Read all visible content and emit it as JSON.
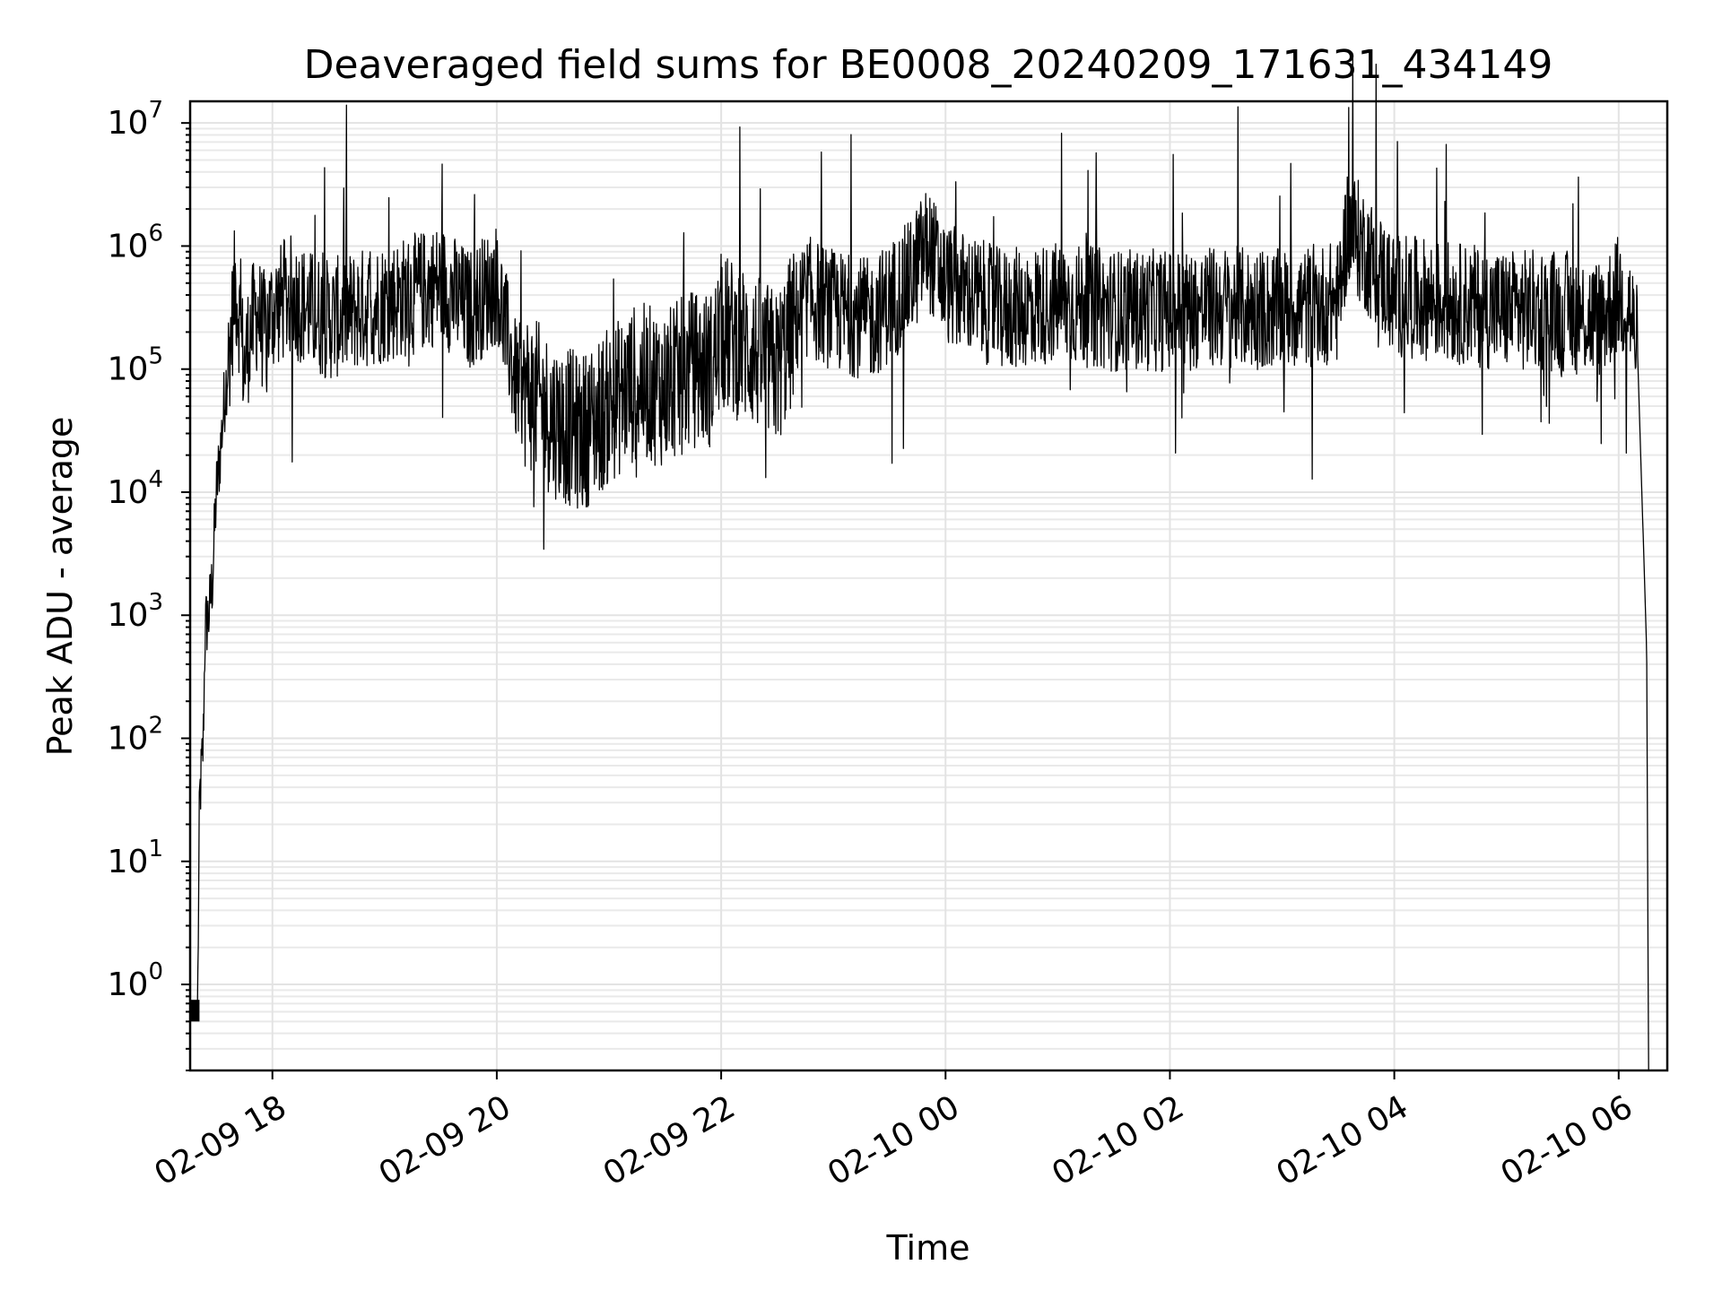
{
  "chart_data": {
    "type": "line",
    "title": "Deaveraged field sums for BE0008_20240209_171631_434149",
    "xlabel": "Time",
    "ylabel": "Peak ADU - average",
    "y_scale": "log",
    "ylim": [
      0.2,
      15000000
    ],
    "xlim": [
      "2024-02-09 17:16",
      "2024-02-10 06:26"
    ],
    "grid": true,
    "x_ticks": [
      {
        "value": "2024-02-09 18:00",
        "label": "02-09 18"
      },
      {
        "value": "2024-02-09 20:00",
        "label": "02-09 20"
      },
      {
        "value": "2024-02-09 22:00",
        "label": "02-09 22"
      },
      {
        "value": "2024-02-10 00:00",
        "label": "02-10 00"
      },
      {
        "value": "2024-02-10 02:00",
        "label": "02-10 02"
      },
      {
        "value": "2024-02-10 04:00",
        "label": "02-10 04"
      },
      {
        "value": "2024-02-10 06:00",
        "label": "02-10 06"
      }
    ],
    "y_ticks": [
      {
        "exp": 0,
        "base": "10",
        "sup": "0"
      },
      {
        "exp": 1,
        "base": "10",
        "sup": "1"
      },
      {
        "exp": 2,
        "base": "10",
        "sup": "2"
      },
      {
        "exp": 3,
        "base": "10",
        "sup": "3"
      },
      {
        "exp": 4,
        "base": "10",
        "sup": "4"
      },
      {
        "exp": 5,
        "base": "10",
        "sup": "5"
      },
      {
        "exp": 6,
        "base": "10",
        "sup": "6"
      },
      {
        "exp": 7,
        "base": "10",
        "sup": "7"
      }
    ],
    "series_color": "#000000",
    "series": [
      {
        "x": [
          "2024-02-09 17:16",
          "2024-02-09 17:20",
          "2024-02-09 17:21",
          "2024-02-09 17:23",
          "2024-02-09 17:24",
          "2024-02-09 17:26",
          "2024-02-09 17:28",
          "2024-02-09 17:30",
          "2024-02-09 17:32",
          "2024-02-09 17:34",
          "2024-02-09 17:36",
          "2024-02-09 17:38",
          "2024-02-09 17:40",
          "2024-02-09 17:42",
          "2024-02-09 17:45",
          "2024-02-09 17:48",
          "2024-02-09 17:52",
          "2024-02-09 17:55",
          "2024-02-09 17:58",
          "2024-02-09 18:00",
          "2024-02-09 18:10",
          "2024-02-09 18:20",
          "2024-02-09 18:30",
          "2024-02-09 18:45",
          "2024-02-09 19:00",
          "2024-02-09 19:15",
          "2024-02-09 19:30",
          "2024-02-09 19:45",
          "2024-02-09 20:00",
          "2024-02-09 20:10",
          "2024-02-09 20:20",
          "2024-02-09 20:30",
          "2024-02-09 20:45",
          "2024-02-09 21:00",
          "2024-02-09 21:15",
          "2024-02-09 21:30",
          "2024-02-09 21:45",
          "2024-02-09 21:55",
          "2024-02-09 22:00",
          "2024-02-09 22:15",
          "2024-02-09 22:30",
          "2024-02-09 22:45",
          "2024-02-09 23:00",
          "2024-02-09 23:20",
          "2024-02-09 23:40",
          "2024-02-09 23:50",
          "2024-02-10 00:00",
          "2024-02-10 00:30",
          "2024-02-10 01:00",
          "2024-02-10 01:30",
          "2024-02-10 02:00",
          "2024-02-10 02:30",
          "2024-02-10 03:00",
          "2024-02-10 03:30",
          "2024-02-10 03:35",
          "2024-02-10 04:00",
          "2024-02-10 04:30",
          "2024-02-10 05:00",
          "2024-02-10 05:30",
          "2024-02-10 05:50",
          "2024-02-10 06:00",
          "2024-02-10 06:05",
          "2024-02-10 06:10",
          "2024-02-10 06:13",
          "2024-02-10 06:15",
          "2024-02-10 06:16"
        ],
        "values": [
          0.6,
          0.6,
          30,
          90,
          800,
          1000,
          2000,
          10000,
          20000,
          50000,
          100000,
          200000,
          500000,
          300000,
          100000,
          200000,
          300000,
          200000,
          250000,
          300000,
          400000,
          300000,
          250000,
          300000,
          350000,
          400000,
          500000,
          300000,
          500000,
          80000,
          60000,
          40000,
          30000,
          50000,
          80000,
          70000,
          100000,
          100000,
          200000,
          150000,
          100000,
          400000,
          300000,
          250000,
          500000,
          1000000,
          500000,
          300000,
          350000,
          300000,
          300000,
          320000,
          300000,
          350000,
          1500000,
          400000,
          350000,
          300000,
          300000,
          250000,
          400000,
          350000,
          150000,
          5000,
          500,
          0.2
        ],
        "style": "dense-noisy"
      }
    ]
  }
}
